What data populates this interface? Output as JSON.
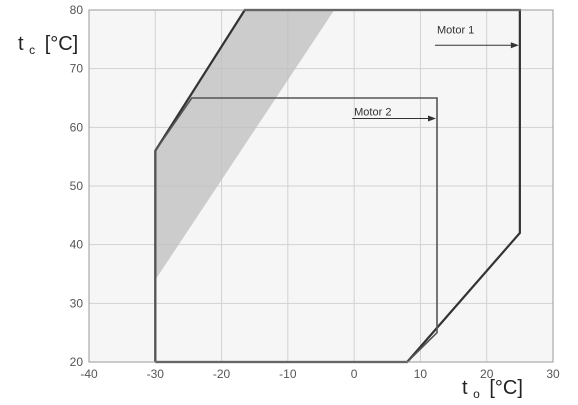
{
  "chart_data": {
    "type": "line",
    "title": "",
    "xlabel": {
      "main": "t",
      "sub": "o",
      "unit": "[°C]"
    },
    "ylabel": {
      "main": "t",
      "sub": "c",
      "unit": "[°C]"
    },
    "xlim": [
      -40,
      30
    ],
    "ylim": [
      20,
      80
    ],
    "x_ticks": [
      -40,
      -30,
      -20,
      -10,
      0,
      10,
      20,
      30
    ],
    "y_ticks": [
      20,
      30,
      40,
      50,
      60,
      70,
      80
    ],
    "grid": true,
    "series": [
      {
        "name": "Motor 1",
        "color": "#333333",
        "points": [
          [
            -30,
            20
          ],
          [
            -30,
            56
          ],
          [
            -16.5,
            80
          ],
          [
            25,
            80
          ],
          [
            25,
            42
          ],
          [
            8,
            20
          ],
          [
            -30,
            20
          ]
        ]
      },
      {
        "name": "Motor 2",
        "color": "#555555",
        "points": [
          [
            -30,
            20
          ],
          [
            -30,
            56
          ],
          [
            -24.5,
            65
          ],
          [
            12.5,
            65
          ],
          [
            12.5,
            25
          ],
          [
            8,
            20
          ]
        ]
      }
    ],
    "shaded_region": {
      "color": "#bdbdbd",
      "points": [
        [
          -30,
          34
        ],
        [
          -30,
          56
        ],
        [
          -16.5,
          80
        ],
        [
          -3,
          80
        ],
        [
          -30,
          34
        ]
      ]
    },
    "annotations": [
      {
        "text": "Motor 1",
        "x": 12.5,
        "y": 76,
        "arrow_to": [
          25,
          74
        ]
      },
      {
        "text": "Motor 2",
        "x": 0,
        "y": 62,
        "arrow_to": [
          12.5,
          61.5
        ]
      }
    ]
  }
}
